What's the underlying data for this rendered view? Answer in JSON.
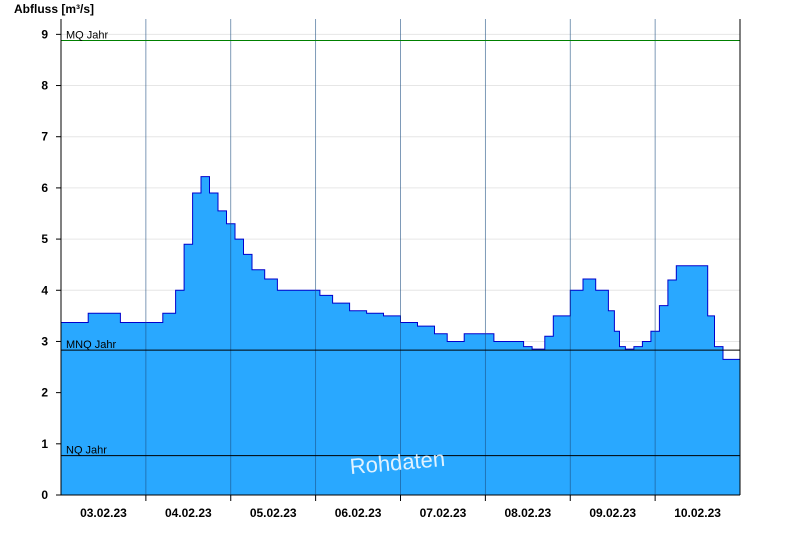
{
  "chart_data": {
    "type": "area",
    "ylabel": "Abfluss [m³/s]",
    "ylim": [
      0,
      9.3
    ],
    "yticks": [
      0,
      1,
      2,
      3,
      4,
      5,
      6,
      7,
      8,
      9
    ],
    "x_start": "02.02.23 12:00",
    "x_end": "10.02.23 12:00",
    "x_tick_labels": [
      "03.02.23",
      "04.02.23",
      "05.02.23",
      "06.02.23",
      "07.02.23",
      "08.02.23",
      "09.02.23",
      "10.02.23"
    ],
    "grid": true,
    "series": [
      {
        "fill_color": "#29a8ff",
        "line_color": "#0000cc",
        "x": [
          0,
          0.3,
          0.32,
          0.7,
          0.72,
          1.05,
          1.2,
          1.35,
          1.45,
          1.55,
          1.65,
          1.75,
          1.85,
          1.95,
          2.05,
          2.15,
          2.25,
          2.4,
          2.55,
          2.75,
          3.0,
          3.05,
          3.2,
          3.4,
          3.6,
          3.8,
          4.0,
          4.2,
          4.4,
          4.55,
          4.75,
          4.95,
          5.1,
          5.3,
          5.45,
          5.55,
          5.7,
          5.8,
          6.0,
          6.15,
          6.3,
          6.45,
          6.52,
          6.58,
          6.65,
          6.75,
          6.85,
          6.95,
          7.05,
          7.15,
          7.25,
          7.35,
          7.5,
          7.62,
          7.7,
          7.8,
          8.0
        ],
        "y": [
          3.37,
          3.37,
          3.55,
          3.37,
          3.37,
          3.37,
          3.55,
          4.0,
          4.9,
          5.9,
          6.22,
          5.9,
          5.55,
          5.3,
          5.0,
          4.7,
          4.4,
          4.22,
          4.0,
          4.0,
          4.0,
          3.9,
          3.75,
          3.6,
          3.55,
          3.5,
          3.37,
          3.3,
          3.15,
          3.0,
          3.15,
          3.15,
          3.0,
          3.0,
          2.9,
          2.85,
          3.1,
          3.5,
          4.0,
          4.22,
          4.0,
          3.6,
          3.2,
          2.9,
          2.85,
          2.9,
          3.0,
          3.2,
          3.7,
          4.2,
          4.48,
          4.48,
          4.48,
          3.5,
          2.9,
          2.65,
          2.85
        ]
      }
    ],
    "reference_lines": [
      {
        "label": "MQ Jahr",
        "value": 8.88,
        "color": "#008000"
      },
      {
        "label": "MNQ Jahr",
        "value": 2.83,
        "color": "#000000"
      },
      {
        "label": "NQ Jahr",
        "value": 0.77,
        "color": "#000000"
      }
    ],
    "annotations": [
      "Rohdaten"
    ]
  }
}
